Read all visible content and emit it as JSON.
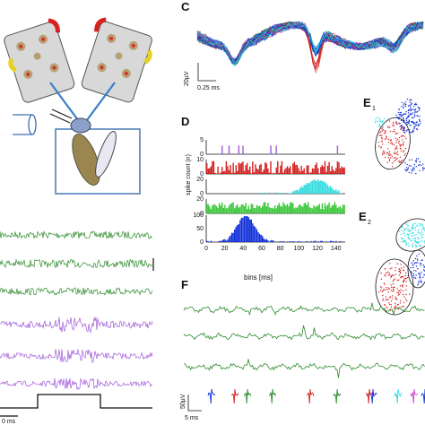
{
  "panel_labels": {
    "c": "C",
    "d": "D",
    "e1": "E",
    "e1_sub": "1",
    "e2": "E",
    "e2_sub": "2",
    "f": "F"
  },
  "scale_c": {
    "amplitude": "20µV",
    "time": "0.25 ms"
  },
  "scale_f": {
    "amplitude": "50µV",
    "time": "5 ms"
  },
  "scale_left_time": "0 ms",
  "colors": {
    "green": "#2e8b2e",
    "purple": "#a15bd8",
    "blue": "#1030d8",
    "cyan": "#33dde0",
    "red": "#d42020",
    "bright_green": "#3ac83a",
    "magenta": "#d040d0"
  },
  "chart_data": {
    "type": "bar",
    "title": "",
    "xlabel": "bins [ms]",
    "ylabel": "spike count (n)",
    "x_ticks": [
      "0",
      "20",
      "40",
      "60",
      "80",
      "100",
      "120",
      "140"
    ],
    "xlim": [
      0,
      150
    ],
    "series": [
      {
        "color": "#a15bd8",
        "y_ticks": [
          "5",
          "0"
        ],
        "ymax": 5
      },
      {
        "color": "#d42020",
        "y_ticks": [
          "10",
          "0"
        ],
        "ymax": 12
      },
      {
        "color": "#33dde0",
        "y_ticks": [
          "20",
          "0"
        ],
        "ymax": 25
      },
      {
        "color": "#3ac83a",
        "y_ticks": [
          "20",
          "0"
        ],
        "ymax": 25
      },
      {
        "color": "#1030d8",
        "y_ticks": [
          "100",
          "50",
          "0"
        ],
        "ymax": 110
      }
    ]
  }
}
